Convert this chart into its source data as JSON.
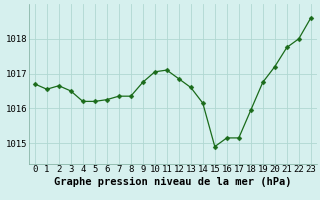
{
  "x": [
    0,
    1,
    2,
    3,
    4,
    5,
    6,
    7,
    8,
    9,
    10,
    11,
    12,
    13,
    14,
    15,
    16,
    17,
    18,
    19,
    20,
    21,
    22,
    23
  ],
  "y": [
    1016.7,
    1016.55,
    1016.65,
    1016.5,
    1016.2,
    1016.2,
    1016.25,
    1016.35,
    1016.35,
    1016.75,
    1017.05,
    1017.1,
    1016.85,
    1016.6,
    1016.15,
    1014.9,
    1015.15,
    1015.15,
    1015.95,
    1016.75,
    1017.2,
    1017.75,
    1018.0,
    1018.6
  ],
  "line_color": "#1a6b1a",
  "marker": "D",
  "marker_size": 2.5,
  "bg_color": "#d6f0ee",
  "grid_color": "#b0d8d2",
  "xlabel": "Graphe pression niveau de la mer (hPa)",
  "xlabel_fontsize": 7.5,
  "tick_fontsize": 6.5,
  "yticks": [
    1015,
    1016,
    1017,
    1018
  ],
  "ylim": [
    1014.4,
    1019.0
  ],
  "xlim": [
    -0.5,
    23.5
  ]
}
